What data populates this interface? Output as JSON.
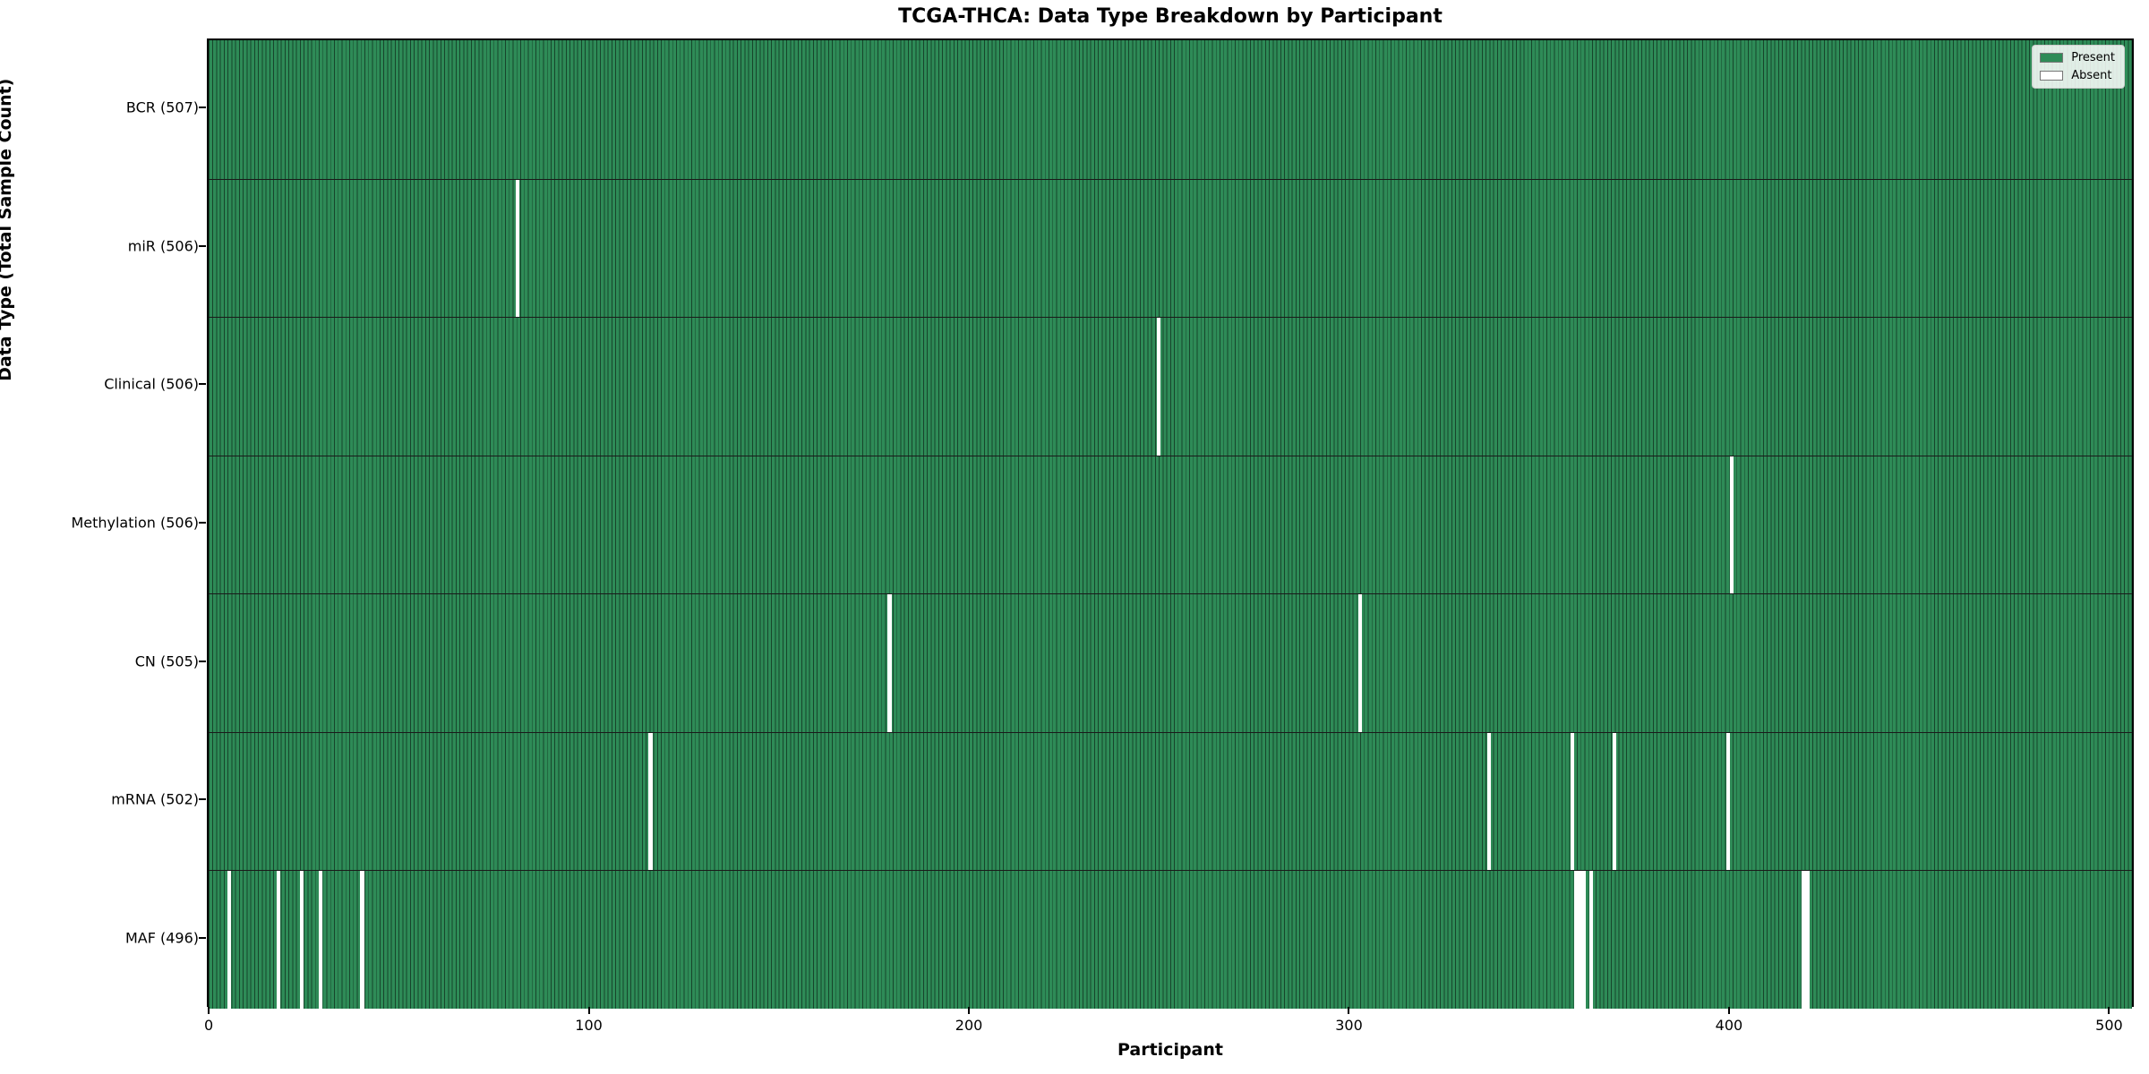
{
  "chart_data": {
    "type": "heatmap",
    "title": "TCGA-THCA: Data Type Breakdown by Participant",
    "xlabel": "Participant",
    "ylabel": "Data Type (Total Sample Count)",
    "x_ticks": [
      0,
      100,
      200,
      300,
      400,
      500
    ],
    "xlim": [
      -0.5,
      506.5
    ],
    "n_participants": 507,
    "grid": false,
    "legend_position": "upper right",
    "colors": {
      "present": "#2e8b57",
      "absent": "#ffffff"
    },
    "legend": [
      {
        "label": "Present",
        "color": "#2e8b57"
      },
      {
        "label": "Absent",
        "color": "#ffffff"
      }
    ],
    "rows": [
      {
        "label": "BCR (507)",
        "data_type": "BCR",
        "present_count": 507,
        "absent_participants": []
      },
      {
        "label": "miR (506)",
        "data_type": "miR",
        "present_count": 506,
        "absent_participants": [
          81
        ]
      },
      {
        "label": "Clinical (506)",
        "data_type": "Clinical",
        "present_count": 506,
        "absent_participants": [
          250
        ]
      },
      {
        "label": "Methylation (506)",
        "data_type": "Methylation",
        "present_count": 506,
        "absent_participants": [
          401
        ]
      },
      {
        "label": "CN (505)",
        "data_type": "CN",
        "present_count": 505,
        "absent_participants": [
          179,
          303
        ]
      },
      {
        "label": "mRNA (502)",
        "data_type": "mRNA",
        "present_count": 502,
        "absent_participants": [
          116,
          337,
          359,
          370,
          400
        ]
      },
      {
        "label": "MAF (496)",
        "data_type": "MAF",
        "present_count": 496,
        "absent_participants": [
          5,
          18,
          24,
          29,
          40,
          360,
          361,
          362,
          364,
          420,
          421
        ]
      }
    ]
  }
}
